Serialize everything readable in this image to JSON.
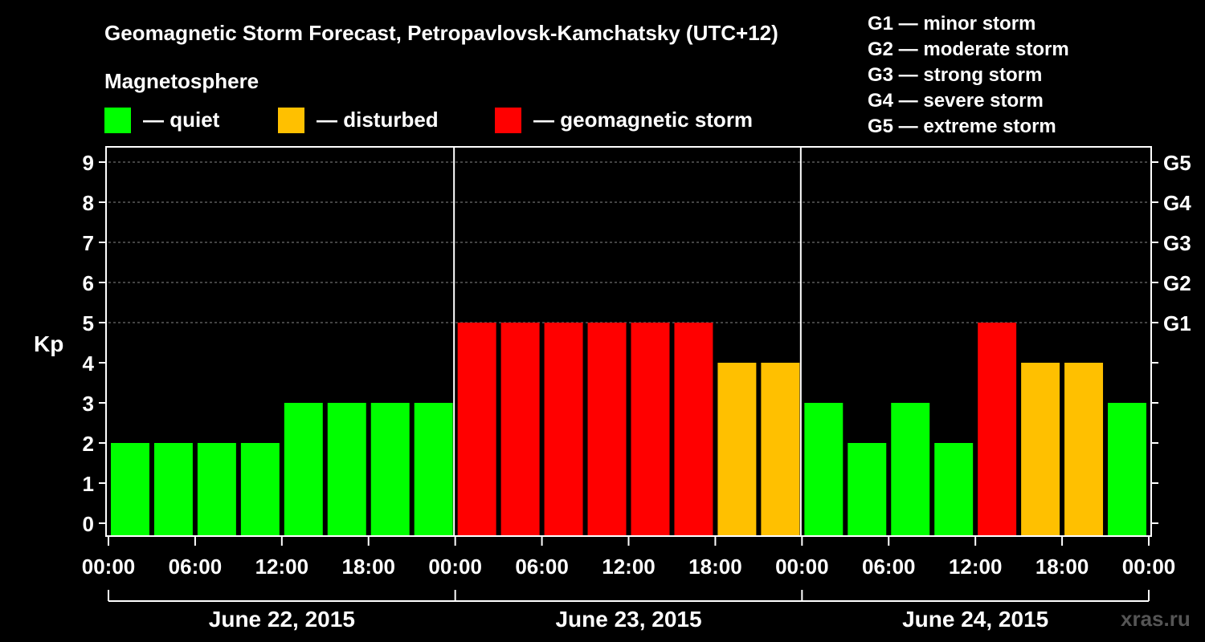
{
  "chart_data": {
    "type": "bar",
    "title": "Geomagnetic Storm Forecast, Petropavlovsk-Kamchatsky (UTC+12)",
    "ylabel": "Kp",
    "ylim": [
      0,
      9
    ],
    "legend_title": "Magnetosphere",
    "legend": [
      {
        "label": "— quiet",
        "color": "#00ff00"
      },
      {
        "label": "— disturbed",
        "color": "#ffc000"
      },
      {
        "label": "— geomagnetic storm",
        "color": "#ff0000"
      }
    ],
    "storm_levels": [
      {
        "text": "G1 — minor storm",
        "level": "G1",
        "kp": 5
      },
      {
        "text": "G2 — moderate storm",
        "level": "G2",
        "kp": 6
      },
      {
        "text": "G3 — strong storm",
        "level": "G3",
        "kp": 7
      },
      {
        "text": "G4 — severe storm",
        "level": "G4",
        "kp": 8
      },
      {
        "text": "G5 — extreme storm",
        "level": "G5",
        "kp": 9
      }
    ],
    "y_ticks": [
      "0",
      "1",
      "2",
      "3",
      "4",
      "5",
      "6",
      "7",
      "8",
      "9"
    ],
    "x_ticks": [
      "00:00",
      "06:00",
      "12:00",
      "18:00",
      "00:00",
      "06:00",
      "12:00",
      "18:00",
      "00:00",
      "06:00",
      "12:00",
      "18:00",
      "00:00"
    ],
    "days": [
      "June 22, 2015",
      "June 23, 2015",
      "June 24, 2015"
    ],
    "values": [
      2,
      2,
      2,
      2,
      3,
      3,
      3,
      3,
      5,
      5,
      5,
      5,
      5,
      5,
      4,
      4,
      3,
      2,
      3,
      2,
      5,
      4,
      4,
      3
    ],
    "colors": {
      "quiet": "#00ff00",
      "disturbed": "#ffc000",
      "storm": "#ff0000",
      "grid": "#888888",
      "axis": "#ffffff"
    }
  },
  "watermark": "xras.ru"
}
